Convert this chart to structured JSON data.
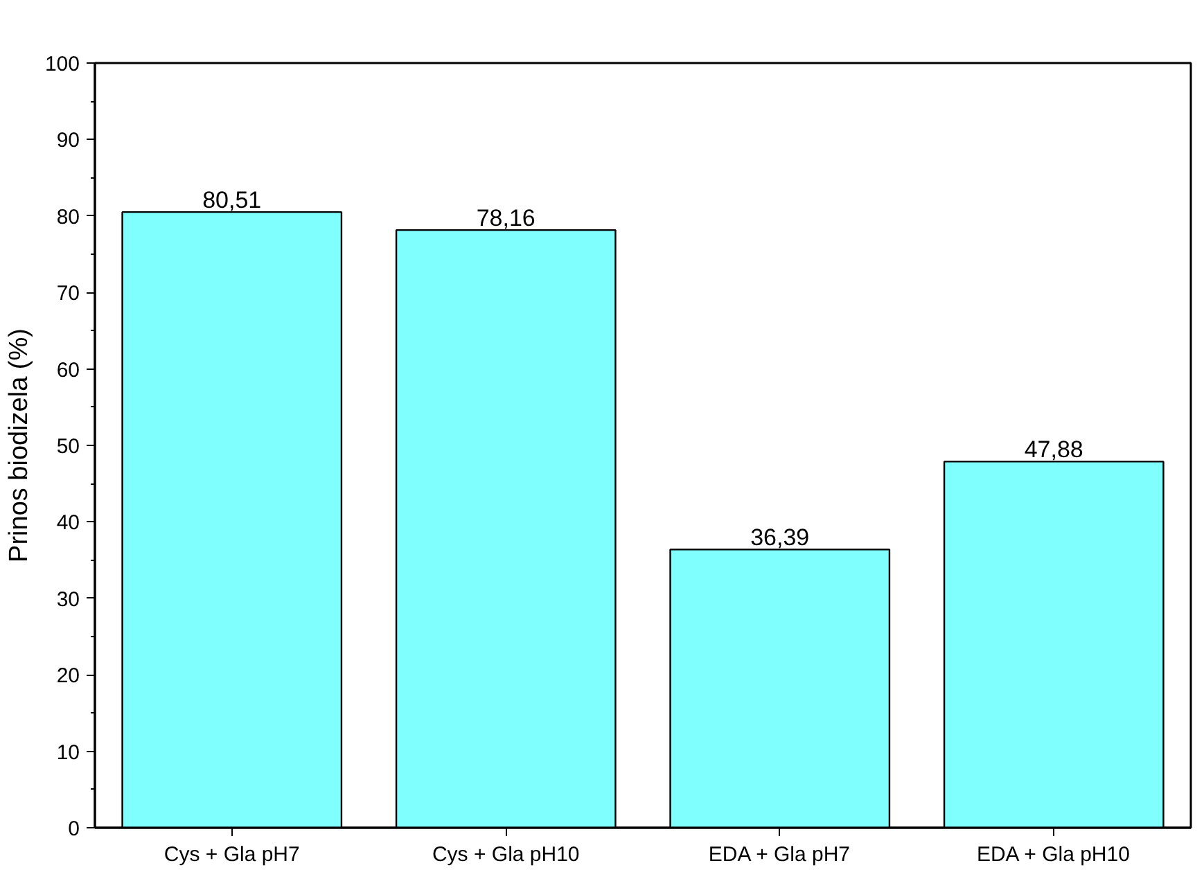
{
  "chart_data": {
    "type": "bar",
    "ylabel": "Prinos biodizela (%)",
    "categories": [
      "Cys + Gla pH7",
      "Cys + Gla pH10",
      "EDA + Gla pH7",
      "EDA + Gla pH10"
    ],
    "values": [
      80.51,
      78.16,
      36.39,
      47.88
    ],
    "value_labels": [
      "80,51",
      "78,16",
      "36,39",
      "47,88"
    ],
    "color": "#80ffff",
    "ylim": [
      0,
      100
    ],
    "yticks": [
      0,
      10,
      20,
      30,
      40,
      50,
      60,
      70,
      80,
      90,
      100
    ]
  }
}
